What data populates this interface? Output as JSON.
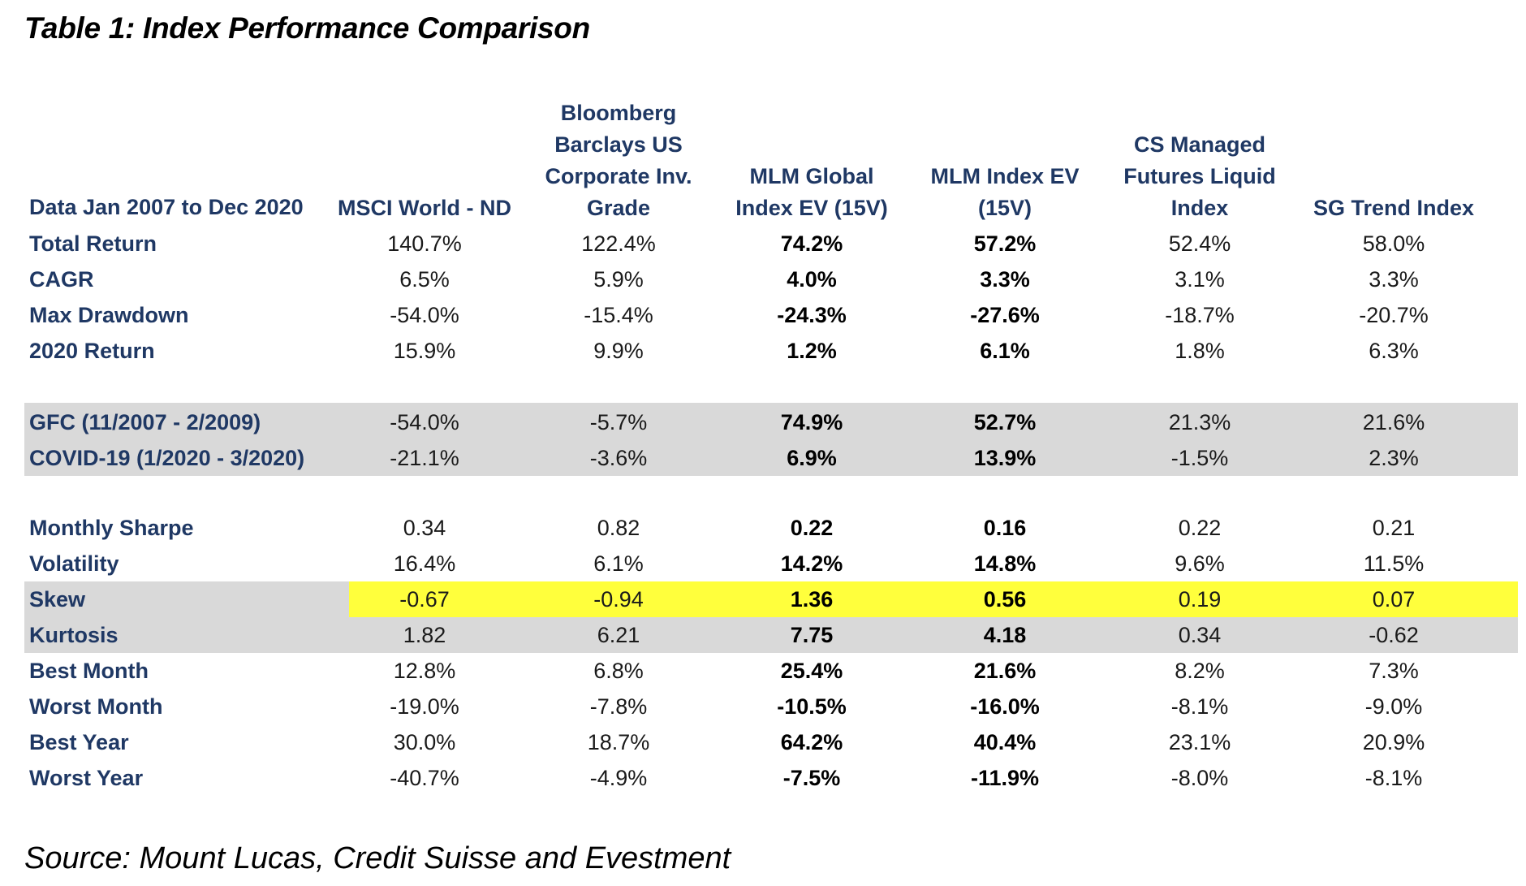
{
  "title": "Table 1: Index Performance Comparison",
  "source": "Source: Mount Lucas, Credit Suisse and Evestment",
  "colors": {
    "header_text": "#1f3864",
    "shade_gray": "#d9d9d9",
    "highlight_yellow": "#ffff3c"
  },
  "table": {
    "corner_label": "Data Jan 2007 to Dec 2020",
    "columns": [
      {
        "lines": [
          "MSCI World - ND"
        ]
      },
      {
        "lines": [
          "Bloomberg",
          "Barclays US",
          "Corporate Inv.",
          "Grade"
        ]
      },
      {
        "lines": [
          "MLM Global",
          "Index EV (15V)"
        ]
      },
      {
        "lines": [
          "MLM Index EV",
          "(15V)"
        ]
      },
      {
        "lines": [
          "CS Managed",
          "Futures Liquid",
          "Index"
        ]
      },
      {
        "lines": [
          "SG Trend Index"
        ]
      }
    ],
    "bold_columns": [
      2,
      3
    ],
    "rows": [
      {
        "label": "Total Return",
        "values": [
          "140.7%",
          "122.4%",
          "74.2%",
          "57.2%",
          "52.4%",
          "58.0%"
        ],
        "shade": "none"
      },
      {
        "label": "CAGR",
        "values": [
          "6.5%",
          "5.9%",
          "4.0%",
          "3.3%",
          "3.1%",
          "3.3%"
        ],
        "shade": "none"
      },
      {
        "label": "Max Drawdown",
        "values": [
          "-54.0%",
          "-15.4%",
          "-24.3%",
          "-27.6%",
          "-18.7%",
          "-20.7%"
        ],
        "shade": "none"
      },
      {
        "label": "2020 Return",
        "values": [
          "15.9%",
          "9.9%",
          "1.2%",
          "6.1%",
          "1.8%",
          "6.3%"
        ],
        "shade": "none"
      },
      {
        "label": "GFC (11/2007 - 2/2009)",
        "values": [
          "-54.0%",
          "-5.7%",
          "74.9%",
          "52.7%",
          "21.3%",
          "21.6%"
        ],
        "shade": "gray"
      },
      {
        "label": "COVID-19 (1/2020 - 3/2020)",
        "values": [
          "-21.1%",
          "-3.6%",
          "6.9%",
          "13.9%",
          "-1.5%",
          "2.3%"
        ],
        "shade": "gray"
      },
      {
        "label": "Monthly Sharpe",
        "values": [
          "0.34",
          "0.82",
          "0.22",
          "0.16",
          "0.22",
          "0.21"
        ],
        "shade": "none"
      },
      {
        "label": "Volatility",
        "values": [
          "16.4%",
          "6.1%",
          "14.2%",
          "14.8%",
          "9.6%",
          "11.5%"
        ],
        "shade": "none"
      },
      {
        "label": "Skew",
        "values": [
          "-0.67",
          "-0.94",
          "1.36",
          "0.56",
          "0.19",
          "0.07"
        ],
        "shade": "yellow"
      },
      {
        "label": "Kurtosis",
        "values": [
          "1.82",
          "6.21",
          "7.75",
          "4.18",
          "0.34",
          "-0.62"
        ],
        "shade": "gray"
      },
      {
        "label": "Best Month",
        "values": [
          "12.8%",
          "6.8%",
          "25.4%",
          "21.6%",
          "8.2%",
          "7.3%"
        ],
        "shade": "none"
      },
      {
        "label": "Worst Month",
        "values": [
          "-19.0%",
          "-7.8%",
          "-10.5%",
          "-16.0%",
          "-8.1%",
          "-9.0%"
        ],
        "shade": "none"
      },
      {
        "label": "Best Year",
        "values": [
          "30.0%",
          "18.7%",
          "64.2%",
          "40.4%",
          "23.1%",
          "20.9%"
        ],
        "shade": "none"
      },
      {
        "label": "Worst Year",
        "values": [
          "-40.7%",
          "-4.9%",
          "-7.5%",
          "-11.9%",
          "-8.0%",
          "-8.1%"
        ],
        "shade": "none"
      }
    ]
  }
}
